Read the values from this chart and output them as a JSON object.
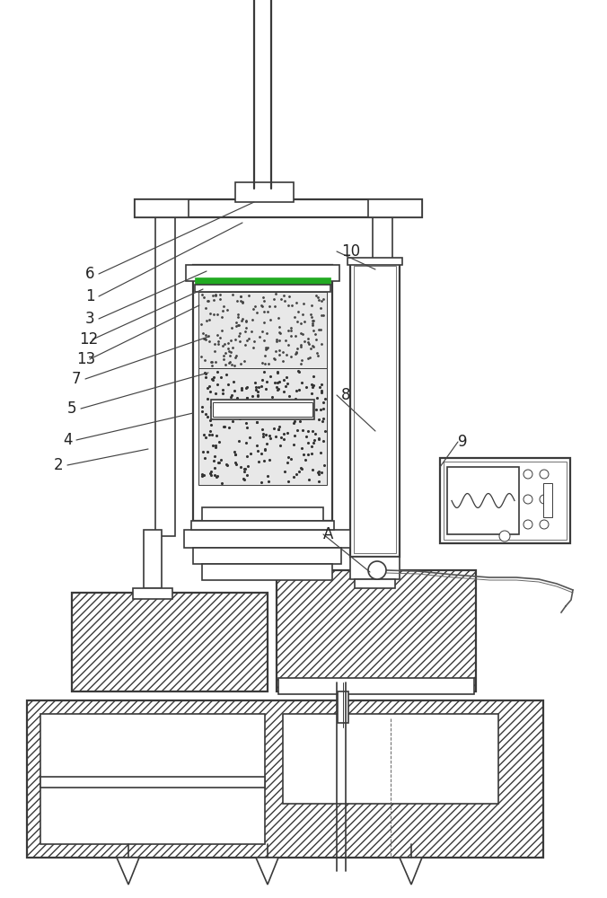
{
  "bg": "#ffffff",
  "lc": "#3a3a3a",
  "lw_main": 1.2,
  "lw_thin": 0.7,
  "lw_thick": 1.6,
  "label_fs": 12
}
